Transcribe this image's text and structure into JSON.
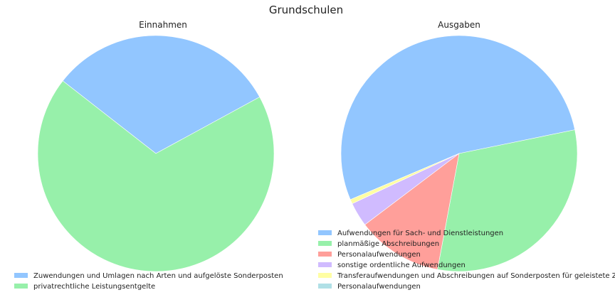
{
  "title": "Grundschulen",
  "colors": {
    "blue": "#92c6ff",
    "green": "#97f0aa",
    "red": "#ff9f9a",
    "purple": "#d0bbff",
    "yellow": "#fffea3",
    "cyan": "#b0e0e6"
  },
  "chart_data": [
    {
      "type": "pie",
      "title": "Einnahmen",
      "legend_position": "bottom-left",
      "slices": [
        {
          "label": "Zuwendungen und Umlagen nach Arten und aufgelöste Sonderposten",
          "value": 31.5,
          "color": "#92c6ff"
        },
        {
          "label": "privatrechtliche Leistungsentgelte",
          "value": 68.5,
          "color": "#97f0aa"
        }
      ]
    },
    {
      "type": "pie",
      "title": "Ausgaben",
      "legend_position": "bottom-left",
      "slices": [
        {
          "label": "Aufwendungen für Sach- und Dienstleistungen",
          "value": 52.9,
          "color": "#92c6ff"
        },
        {
          "label": "planmäßige Abschreibungen",
          "value": 31.0,
          "color": "#97f0aa"
        },
        {
          "label": "Personalaufwendungen",
          "value": 11.7,
          "color": "#ff9f9a"
        },
        {
          "label": "sonstige ordentliche Aufwendungen",
          "value": 3.3,
          "color": "#d0bbff"
        },
        {
          "label": "Transferaufwendungen und Abschreibungen auf Sonderposten für geleistete Zuwendungen",
          "value": 0.6,
          "color": "#fffea3"
        },
        {
          "label": "Personalaufwendungen",
          "value": 0.0,
          "color": "#b0e0e6"
        }
      ]
    }
  ]
}
